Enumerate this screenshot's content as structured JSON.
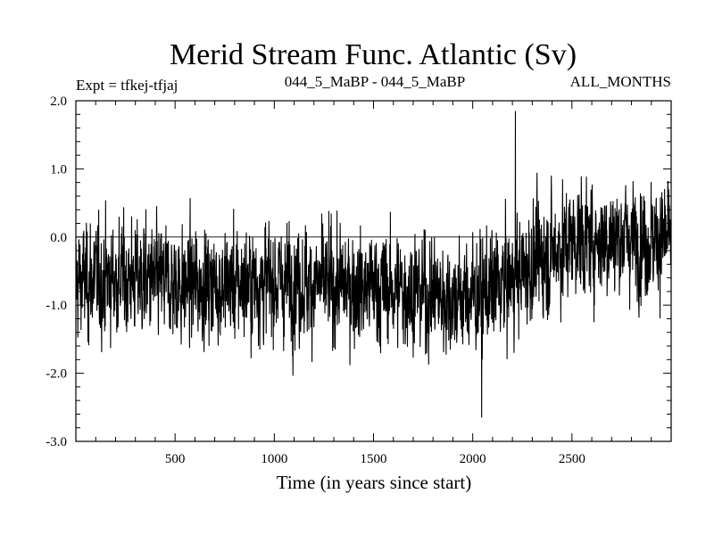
{
  "chart_data": {
    "type": "line",
    "title": "Merid Stream Func. Atlantic (Sv)",
    "subtitle_left": "Expt = tfkej-tfjaj",
    "subtitle_center": "044_5_MaBP - 044_5_MaBP",
    "subtitle_right": "ALL_MONTHS",
    "xlabel": "Time (in years since start)",
    "ylabel": "",
    "xlim": [
      0,
      3000
    ],
    "ylim": [
      -3.0,
      2.0
    ],
    "x_ticks": [
      500,
      1000,
      1500,
      2000,
      2500
    ],
    "x_tick_labels": [
      "500",
      "1000",
      "1500",
      "2000",
      "2500"
    ],
    "y_ticks": [
      -3.0,
      -2.0,
      -1.0,
      0.0,
      1.0,
      2.0
    ],
    "y_tick_labels": [
      "-3.0",
      "-2.0",
      "-1.0",
      "0.0",
      "1.0",
      "2.0"
    ],
    "reference_line_y": 0.0,
    "grid": false,
    "series": [
      {
        "color": "#000000",
        "trend_x": [
          0,
          250,
          500,
          750,
          1000,
          1250,
          1500,
          1750,
          1900,
          2050,
          2200,
          2350,
          2500,
          2750,
          3000
        ],
        "trend_y": [
          -0.65,
          -0.6,
          -0.7,
          -0.7,
          -0.65,
          -0.7,
          -0.75,
          -0.8,
          -0.9,
          -0.85,
          -0.6,
          -0.3,
          -0.05,
          0.0,
          -0.05
        ],
        "spread": 0.45,
        "max": 1.85,
        "max_x": 2215,
        "min": -2.65,
        "min_x": 2045
      }
    ]
  }
}
